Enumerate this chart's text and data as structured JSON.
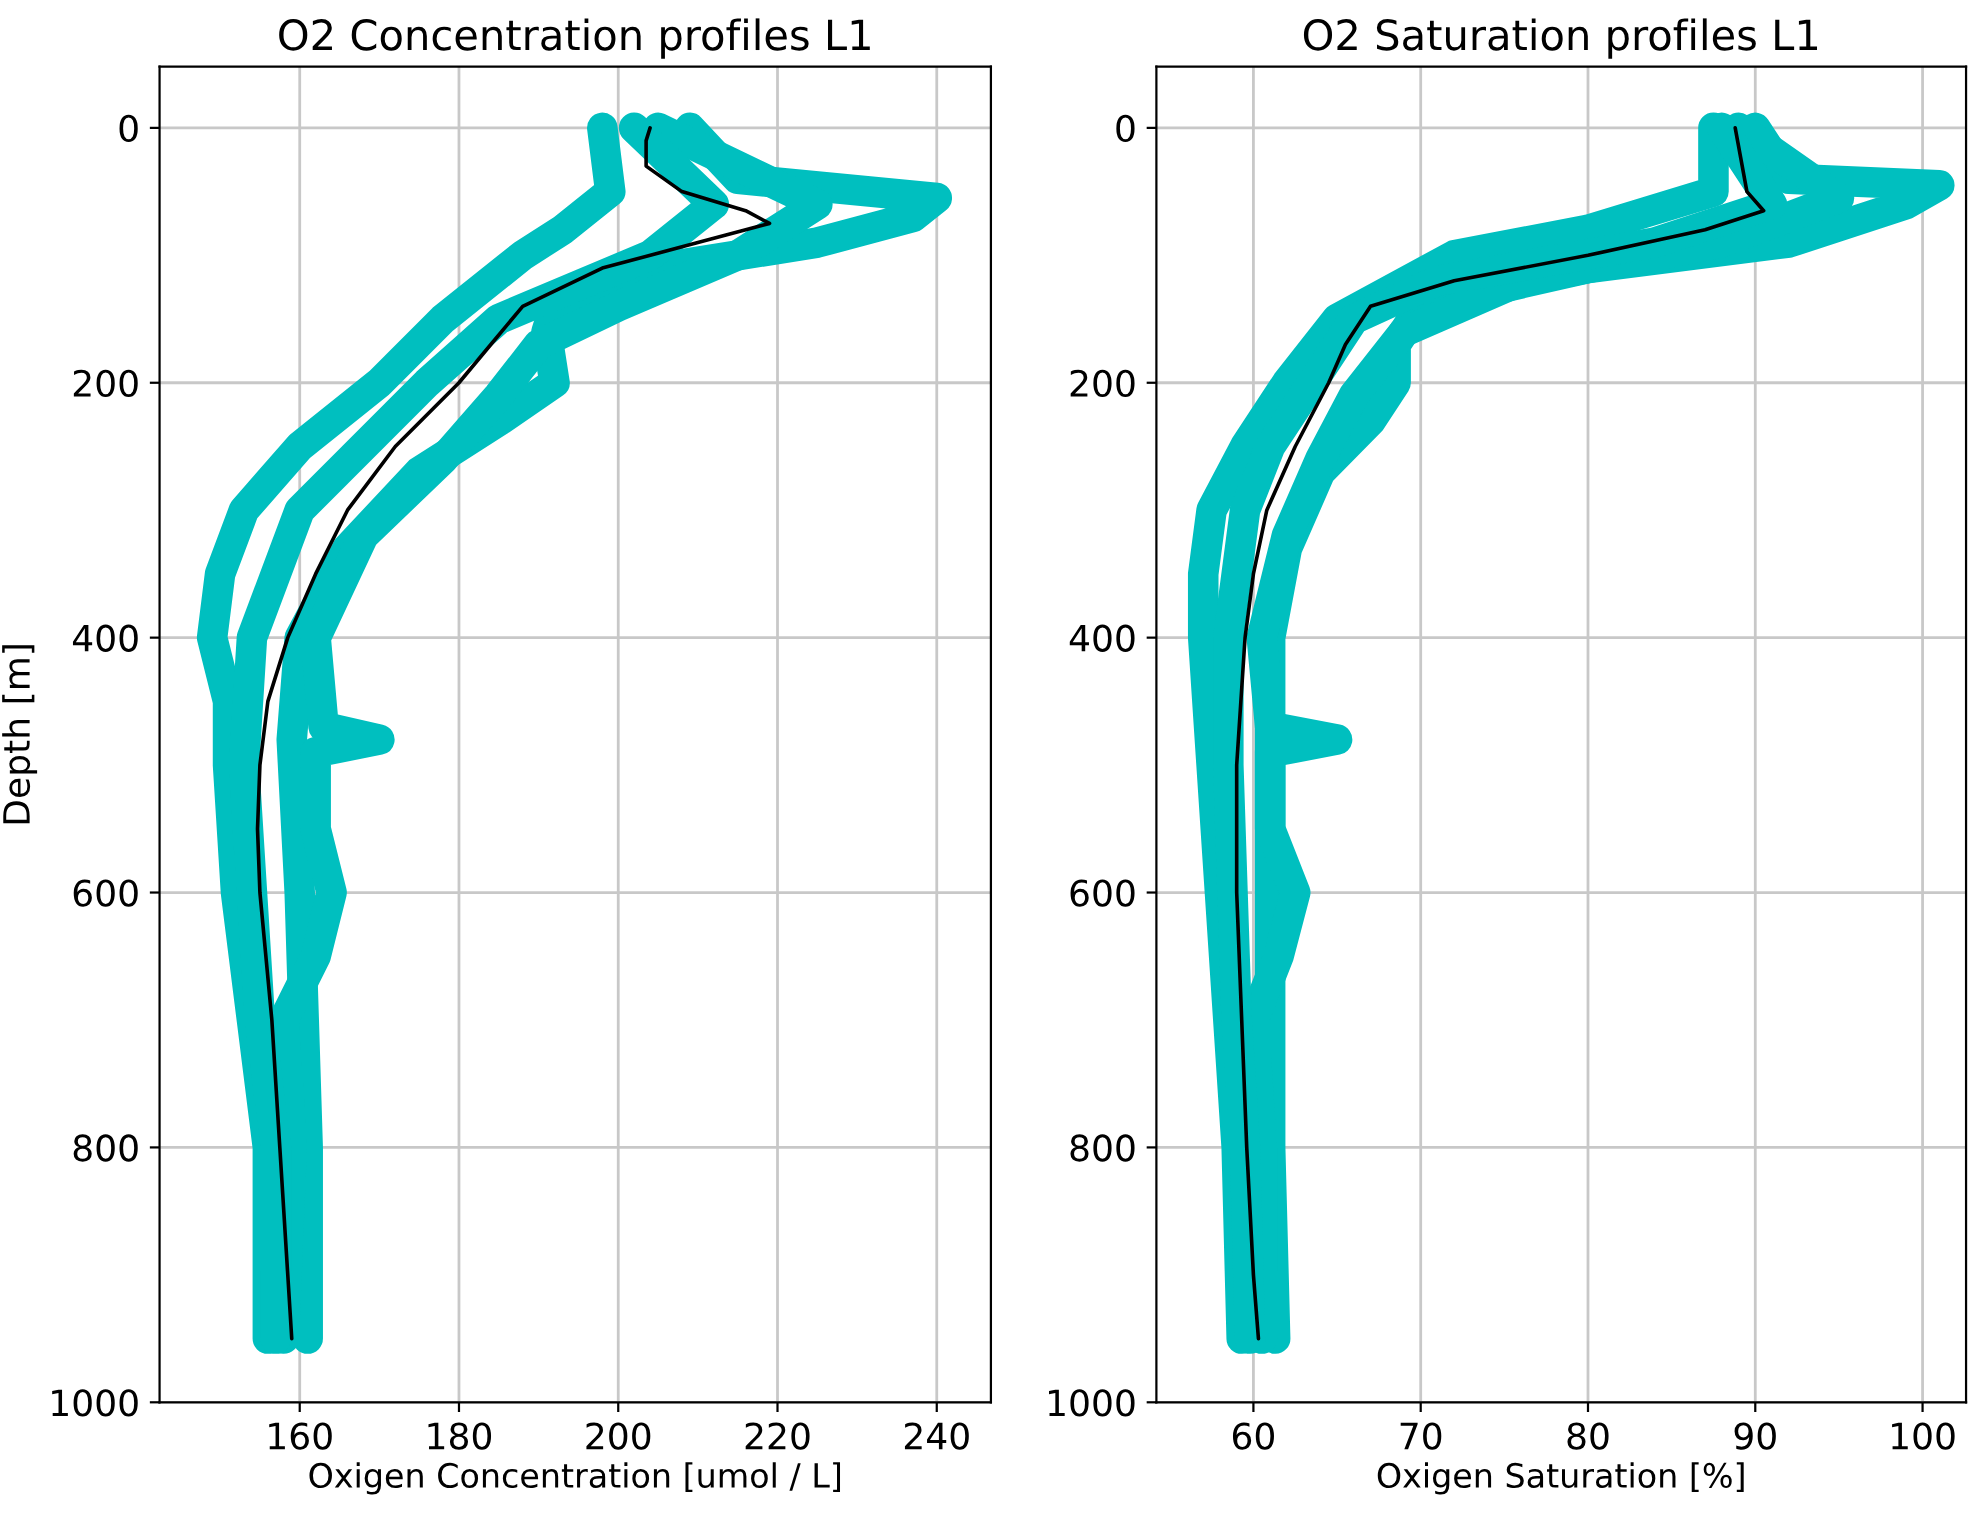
{
  "chart_data": [
    {
      "type": "line",
      "title": "O2 Concentration profiles L1",
      "xlabel": "Oxigen Concentration [umol / L]",
      "ylabel": "Depth [m]",
      "xlim": [
        142.4,
        246.8
      ],
      "xticks": [
        160,
        180,
        200,
        220,
        240
      ],
      "ylim": [
        1000,
        -48
      ],
      "yticks": [
        0,
        200,
        400,
        600,
        800,
        1000
      ],
      "grid": true,
      "line_style": "solid",
      "series": [
        {
          "color": "#00bfbf",
          "x": [
            198,
            199,
            193,
            188,
            178,
            170,
            160,
            153,
            150,
            149,
            151,
            151,
            152,
            154,
            156,
            156
          ],
          "values": [
            0,
            50,
            80,
            100,
            150,
            200,
            250,
            300,
            350,
            400,
            450,
            500,
            600,
            700,
            800,
            950
          ]
        },
        {
          "color": "#00bfbf",
          "x": [
            209,
            215,
            240,
            237,
            225,
            205,
            192,
            191,
            192,
            185,
            175,
            166,
            160,
            159,
            160,
            161,
            161
          ],
          "values": [
            0,
            40,
            55,
            70,
            90,
            110,
            140,
            160,
            200,
            230,
            270,
            330,
            400,
            480,
            600,
            800,
            950
          ]
        },
        {
          "color": "#00bfbf",
          "x": [
            205,
            225,
            215,
            200,
            190,
            185,
            178,
            168,
            162,
            163,
            170,
            162,
            162,
            164,
            162,
            158,
            159,
            158
          ],
          "values": [
            0,
            60,
            100,
            140,
            170,
            210,
            260,
            320,
            400,
            470,
            480,
            490,
            550,
            600,
            650,
            700,
            800,
            950
          ]
        },
        {
          "color": "#00bfbf",
          "x": [
            202,
            212,
            204,
            185,
            176,
            168,
            160,
            154,
            153,
            154,
            155,
            157,
            157
          ],
          "values": [
            0,
            60,
            100,
            150,
            200,
            250,
            300,
            400,
            500,
            600,
            700,
            800,
            950
          ]
        },
        {
          "color": "#000000",
          "x": [
            204,
            203.5,
            203.5,
            208,
            216,
            219,
            210,
            198,
            188,
            184,
            180,
            172,
            166,
            162,
            158.5,
            156,
            155,
            154.7,
            155,
            156.5,
            157.5,
            158.5,
            159
          ],
          "values": [
            0,
            10,
            30,
            50,
            65,
            75,
            90,
            110,
            140,
            170,
            200,
            250,
            300,
            350,
            400,
            450,
            500,
            550,
            600,
            700,
            800,
            900,
            950
          ]
        }
      ]
    },
    {
      "type": "line",
      "title": "O2 Saturation profiles L1",
      "xlabel": "Oxigen Saturation [%]",
      "xlim": [
        54.2,
        102.6
      ],
      "xticks": [
        60,
        70,
        80,
        90,
        100
      ],
      "ylim": [
        1000,
        -48
      ],
      "yticks": [
        0,
        200,
        400,
        600,
        800,
        1000
      ],
      "grid": true,
      "line_style": "solid",
      "series": [
        {
          "color": "#00bfbf",
          "x": [
            87.5,
            87.5,
            80,
            72,
            65,
            62,
            59.5,
            57.5,
            57,
            57,
            57.5,
            58,
            58.5,
            59,
            59.3
          ],
          "values": [
            0,
            50,
            80,
            100,
            150,
            200,
            250,
            300,
            350,
            400,
            500,
            600,
            700,
            800,
            950
          ]
        },
        {
          "color": "#00bfbf",
          "x": [
            90,
            92,
            101,
            99,
            92,
            80,
            70,
            68.5,
            68.5,
            67,
            64,
            62,
            61,
            61,
            61,
            61,
            61.3
          ],
          "values": [
            0,
            40,
            45,
            60,
            90,
            110,
            140,
            170,
            200,
            230,
            270,
            330,
            400,
            500,
            600,
            800,
            950
          ]
        },
        {
          "color": "#00bfbf",
          "x": [
            89,
            95,
            88,
            76,
            69,
            66,
            64,
            62,
            60.5,
            61,
            65,
            61,
            61,
            62.5,
            61.5,
            60,
            60.5,
            60.5
          ],
          "values": [
            0,
            55,
            90,
            120,
            160,
            210,
            260,
            320,
            400,
            470,
            480,
            490,
            550,
            600,
            650,
            700,
            800,
            950
          ]
        },
        {
          "color": "#00bfbf",
          "x": [
            88,
            91,
            84,
            71,
            66,
            63.5,
            61,
            59.5,
            58.5,
            58.5,
            59,
            59.5,
            59.8
          ],
          "values": [
            0,
            60,
            90,
            120,
            150,
            200,
            250,
            300,
            400,
            500,
            700,
            800,
            950
          ]
        },
        {
          "color": "#000000",
          "x": [
            88.8,
            89.5,
            90.5,
            87,
            80,
            72,
            67,
            65.5,
            64.5,
            62.5,
            60.8,
            60,
            59.5,
            59,
            59,
            59.3,
            59.6,
            60,
            60.3
          ],
          "values": [
            0,
            50,
            65,
            80,
            100,
            120,
            140,
            170,
            200,
            250,
            300,
            350,
            400,
            500,
            600,
            700,
            800,
            900,
            950
          ]
        }
      ]
    }
  ]
}
